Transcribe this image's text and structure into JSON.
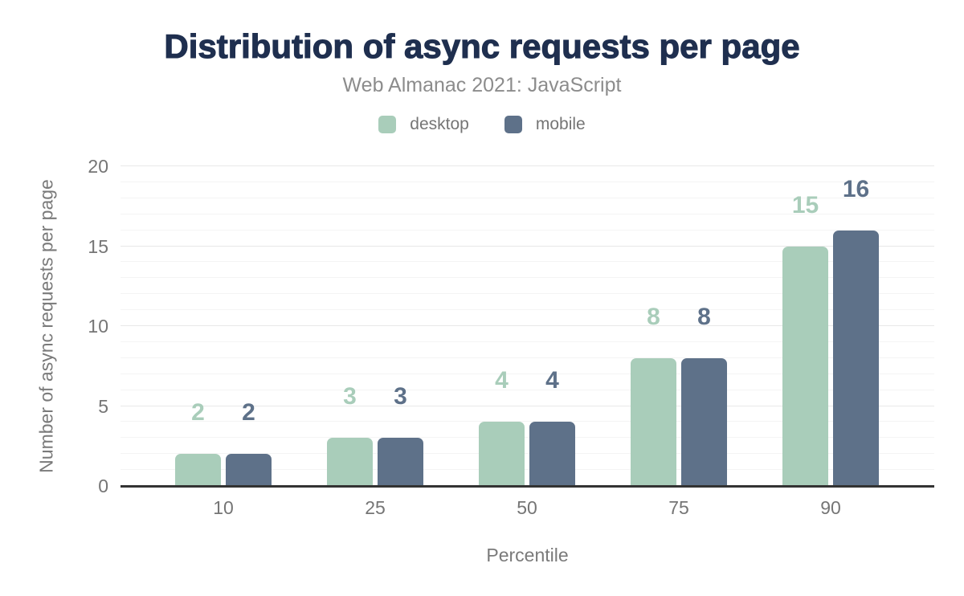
{
  "chart_data": {
    "type": "bar",
    "title": "Distribution of async requests per page",
    "subtitle": "Web Almanac 2021: JavaScript",
    "xlabel": "Percentile",
    "ylabel": "Number of async requests per page",
    "categories": [
      "10",
      "25",
      "50",
      "75",
      "90"
    ],
    "series": [
      {
        "name": "desktop",
        "color": "#a9cdba",
        "values": [
          2,
          3,
          4,
          8,
          15
        ]
      },
      {
        "name": "mobile",
        "color": "#5e7189",
        "values": [
          2,
          3,
          4,
          8,
          16
        ]
      }
    ],
    "ylim": [
      0,
      20
    ],
    "yticks": [
      0,
      5,
      10,
      15,
      20
    ],
    "grid": {
      "orientation": "horizontal",
      "minor_step": 1,
      "major_step": 5
    },
    "legend_position": "top-center",
    "bar_value_labels": true
  },
  "theme": {
    "background": "#ffffff",
    "title_color": "#1f2f4f",
    "subtitle_color": "#8c8c8c",
    "axis_text_color": "#757575",
    "baseline_color": "#333333",
    "minor_grid_color": "#f4f4f4",
    "major_grid_color": "#e8e8e8"
  }
}
